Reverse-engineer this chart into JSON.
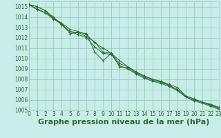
{
  "title": "Graphe pression niveau de la mer (hPa)",
  "xlim": [
    0,
    23
  ],
  "ylim": [
    1005.0,
    1015.5
  ],
  "yticks": [
    1005,
    1006,
    1007,
    1008,
    1009,
    1010,
    1011,
    1012,
    1013,
    1014,
    1015
  ],
  "xticks": [
    0,
    1,
    2,
    3,
    4,
    5,
    6,
    7,
    8,
    9,
    10,
    11,
    12,
    13,
    14,
    15,
    16,
    17,
    18,
    19,
    20,
    21,
    22,
    23
  ],
  "bg_color": "#c8ece8",
  "grid_color": "#99ccbb",
  "line_color": "#2d6b2d",
  "lines": [
    [
      1015.2,
      1015.0,
      1014.6,
      1014.0,
      1013.2,
      1012.6,
      1012.5,
      1012.1,
      1011.6,
      1010.6,
      1010.5,
      1009.5,
      1009.2,
      1008.7,
      1008.3,
      1008.0,
      1007.8,
      1007.5,
      1007.2,
      1006.4,
      1006.1,
      1005.8,
      1005.6,
      1005.3
    ],
    [
      1015.2,
      1015.0,
      1014.6,
      1013.9,
      1013.4,
      1012.8,
      1012.6,
      1012.3,
      1011.5,
      1011.0,
      1010.5,
      1009.8,
      1009.2,
      1008.7,
      1008.3,
      1008.0,
      1007.8,
      1007.4,
      1007.0,
      1006.4,
      1006.1,
      1005.8,
      1005.5,
      1005.3
    ],
    [
      1015.2,
      1014.8,
      1014.4,
      1013.9,
      1013.3,
      1012.6,
      1012.3,
      1012.0,
      1011.1,
      1010.5,
      1010.4,
      1009.3,
      1009.0,
      1008.5,
      1008.1,
      1007.8,
      1007.6,
      1007.3,
      1006.9,
      1006.3,
      1005.9,
      1005.7,
      1005.4,
      1005.1
    ],
    [
      1015.2,
      1014.7,
      1014.4,
      1013.8,
      1013.3,
      1012.4,
      1012.5,
      1012.4,
      1010.6,
      1009.8,
      1010.5,
      1009.2,
      1009.1,
      1008.6,
      1008.2,
      1007.9,
      1007.7,
      1007.4,
      1007.0,
      1006.3,
      1006.0,
      1005.8,
      1005.5,
      1005.2
    ]
  ],
  "font_color": "#2d6b2d",
  "tick_fontsize": 5.5,
  "title_fontsize": 8
}
